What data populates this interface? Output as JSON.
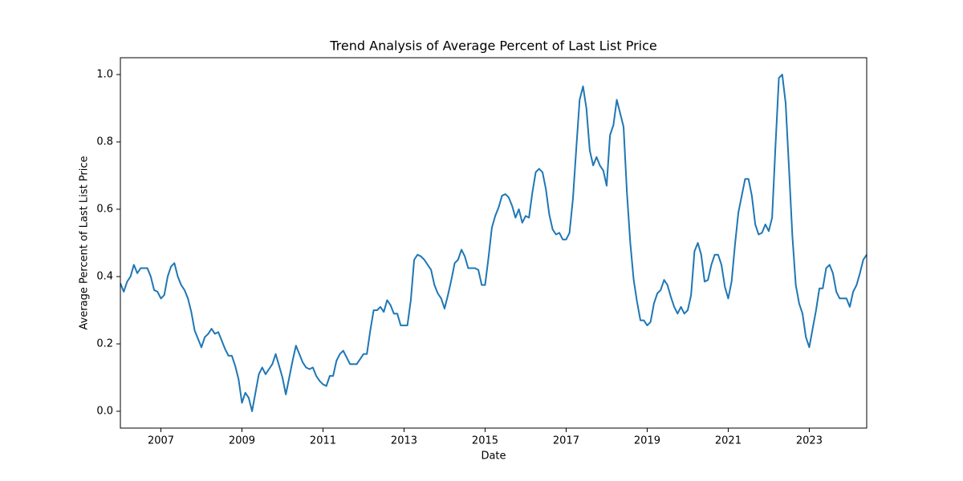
{
  "chart_data": {
    "type": "line",
    "title": "Trend Analysis of Average Percent of Last List Price",
    "x_label": "Date",
    "y_label": "Average Percent of Last List Price",
    "xlim": [
      2006,
      2024.417
    ],
    "ylim": [
      -0.05,
      1.05
    ],
    "xticks": [
      2007,
      2009,
      2011,
      2013,
      2015,
      2017,
      2019,
      2021,
      2023
    ],
    "yticks": [
      {
        "value": 0,
        "label": "0.0"
      },
      0.2,
      0.4,
      0.6,
      0.8,
      {
        "value": 1,
        "label": "1.0"
      }
    ],
    "x": [
      2006,
      2006.083,
      2006.167,
      2006.25,
      2006.333,
      2006.417,
      2006.5,
      2006.583,
      2006.667,
      2006.75,
      2006.833,
      2006.917,
      2007,
      2007.083,
      2007.167,
      2007.25,
      2007.333,
      2007.417,
      2007.5,
      2007.583,
      2007.667,
      2007.75,
      2007.833,
      2007.917,
      2008,
      2008.083,
      2008.167,
      2008.25,
      2008.333,
      2008.417,
      2008.5,
      2008.583,
      2008.667,
      2008.75,
      2008.833,
      2008.917,
      2009,
      2009.083,
      2009.167,
      2009.25,
      2009.333,
      2009.417,
      2009.5,
      2009.583,
      2009.667,
      2009.75,
      2009.833,
      2009.917,
      2010,
      2010.083,
      2010.167,
      2010.25,
      2010.333,
      2010.417,
      2010.5,
      2010.583,
      2010.667,
      2010.75,
      2010.833,
      2010.917,
      2011,
      2011.083,
      2011.167,
      2011.25,
      2011.333,
      2011.417,
      2011.5,
      2011.583,
      2011.667,
      2011.75,
      2011.833,
      2011.917,
      2012,
      2012.083,
      2012.167,
      2012.25,
      2012.333,
      2012.417,
      2012.5,
      2012.583,
      2012.667,
      2012.75,
      2012.833,
      2012.917,
      2013,
      2013.083,
      2013.167,
      2013.25,
      2013.333,
      2013.417,
      2013.5,
      2013.583,
      2013.667,
      2013.75,
      2013.833,
      2013.917,
      2014,
      2014.083,
      2014.167,
      2014.25,
      2014.333,
      2014.417,
      2014.5,
      2014.583,
      2014.667,
      2014.75,
      2014.833,
      2014.917,
      2015,
      2015.083,
      2015.167,
      2015.25,
      2015.333,
      2015.417,
      2015.5,
      2015.583,
      2015.667,
      2015.75,
      2015.833,
      2015.917,
      2016,
      2016.083,
      2016.167,
      2016.25,
      2016.333,
      2016.417,
      2016.5,
      2016.583,
      2016.667,
      2016.75,
      2016.833,
      2016.917,
      2017,
      2017.083,
      2017.167,
      2017.25,
      2017.333,
      2017.417,
      2017.5,
      2017.583,
      2017.667,
      2017.75,
      2017.833,
      2017.917,
      2018,
      2018.083,
      2018.167,
      2018.25,
      2018.333,
      2018.417,
      2018.5,
      2018.583,
      2018.667,
      2018.75,
      2018.833,
      2018.917,
      2019,
      2019.083,
      2019.167,
      2019.25,
      2019.333,
      2019.417,
      2019.5,
      2019.583,
      2019.667,
      2019.75,
      2019.833,
      2019.917,
      2020,
      2020.083,
      2020.167,
      2020.25,
      2020.333,
      2020.417,
      2020.5,
      2020.583,
      2020.667,
      2020.75,
      2020.833,
      2020.917,
      2021,
      2021.083,
      2021.167,
      2021.25,
      2021.333,
      2021.417,
      2021.5,
      2021.583,
      2021.667,
      2021.75,
      2021.833,
      2021.917,
      2022,
      2022.083,
      2022.167,
      2022.25,
      2022.333,
      2022.417,
      2022.5,
      2022.583,
      2022.667,
      2022.75,
      2022.833,
      2022.917,
      2023,
      2023.083,
      2023.167,
      2023.25,
      2023.333,
      2023.417,
      2023.5,
      2023.583,
      2023.667,
      2023.75,
      2023.833,
      2023.917,
      2024,
      2024.083,
      2024.167,
      2024.25,
      2024.333,
      2024.417
    ],
    "series": [
      {
        "color": "#1f77b4",
        "values": [
          0.38,
          0.355,
          0.385,
          0.4,
          0.435,
          0.41,
          0.425,
          0.425,
          0.425,
          0.4,
          0.36,
          0.355,
          0.335,
          0.345,
          0.4,
          0.43,
          0.44,
          0.4,
          0.375,
          0.36,
          0.335,
          0.295,
          0.24,
          0.215,
          0.19,
          0.22,
          0.23,
          0.245,
          0.23,
          0.235,
          0.21,
          0.185,
          0.165,
          0.165,
          0.135,
          0.095,
          0.025,
          0.055,
          0.04,
          0.0,
          0.055,
          0.11,
          0.13,
          0.11,
          0.125,
          0.14,
          0.17,
          0.135,
          0.1,
          0.05,
          0.1,
          0.15,
          0.195,
          0.17,
          0.145,
          0.13,
          0.125,
          0.13,
          0.105,
          0.09,
          0.08,
          0.075,
          0.105,
          0.105,
          0.15,
          0.17,
          0.18,
          0.16,
          0.14,
          0.14,
          0.14,
          0.155,
          0.17,
          0.17,
          0.24,
          0.3,
          0.3,
          0.31,
          0.295,
          0.33,
          0.315,
          0.29,
          0.29,
          0.255,
          0.255,
          0.255,
          0.33,
          0.45,
          0.465,
          0.46,
          0.45,
          0.435,
          0.42,
          0.375,
          0.35,
          0.335,
          0.305,
          0.345,
          0.39,
          0.44,
          0.45,
          0.48,
          0.46,
          0.425,
          0.425,
          0.425,
          0.42,
          0.375,
          0.375,
          0.455,
          0.545,
          0.58,
          0.605,
          0.64,
          0.645,
          0.635,
          0.61,
          0.575,
          0.6,
          0.56,
          0.58,
          0.575,
          0.65,
          0.71,
          0.72,
          0.71,
          0.66,
          0.585,
          0.54,
          0.525,
          0.53,
          0.51,
          0.51,
          0.53,
          0.63,
          0.78,
          0.925,
          0.965,
          0.9,
          0.775,
          0.73,
          0.755,
          0.73,
          0.715,
          0.67,
          0.82,
          0.85,
          0.925,
          0.885,
          0.845,
          0.65,
          0.5,
          0.39,
          0.325,
          0.27,
          0.27,
          0.255,
          0.265,
          0.32,
          0.35,
          0.36,
          0.39,
          0.375,
          0.34,
          0.31,
          0.29,
          0.31,
          0.29,
          0.3,
          0.345,
          0.475,
          0.5,
          0.465,
          0.385,
          0.39,
          0.435,
          0.465,
          0.465,
          0.435,
          0.37,
          0.335,
          0.385,
          0.495,
          0.59,
          0.64,
          0.69,
          0.69,
          0.64,
          0.555,
          0.525,
          0.53,
          0.555,
          0.535,
          0.575,
          0.79,
          0.99,
          1.0,
          0.915,
          0.72,
          0.52,
          0.375,
          0.32,
          0.29,
          0.22,
          0.19,
          0.245,
          0.3,
          0.365,
          0.365,
          0.425,
          0.435,
          0.41,
          0.355,
          0.335,
          0.335,
          0.335,
          0.31,
          0.355,
          0.375,
          0.41,
          0.45,
          0.465
        ]
      }
    ]
  }
}
